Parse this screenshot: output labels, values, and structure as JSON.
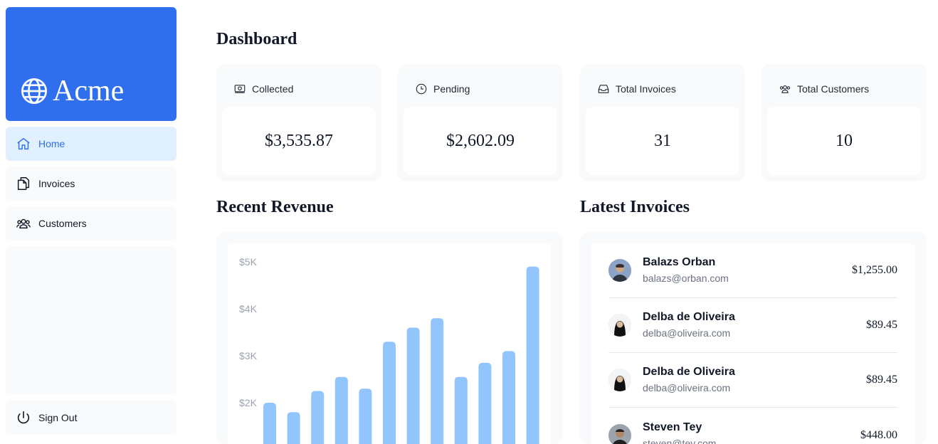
{
  "sidebar": {
    "logo_text": "Acme",
    "nav": [
      {
        "label": "Home",
        "active": true
      },
      {
        "label": "Invoices",
        "active": false
      },
      {
        "label": "Customers",
        "active": false
      }
    ],
    "sign_out": "Sign Out"
  },
  "main": {
    "title": "Dashboard",
    "cards": [
      {
        "label": "Collected",
        "value": "$3,535.87",
        "icon": "banknotes-icon"
      },
      {
        "label": "Pending",
        "value": "$2,602.09",
        "icon": "clock-icon"
      },
      {
        "label": "Total Invoices",
        "value": "31",
        "icon": "inbox-icon"
      },
      {
        "label": "Total Customers",
        "value": "10",
        "icon": "user-group-icon"
      }
    ],
    "revenue_title": "Recent Revenue",
    "invoices_title": "Latest Invoices",
    "latest_invoices": [
      {
        "name": "Balazs Orban",
        "email": "balazs@orban.com",
        "amount": "$1,255.00"
      },
      {
        "name": "Delba de Oliveira",
        "email": "delba@oliveira.com",
        "amount": "$89.45"
      },
      {
        "name": "Delba de Oliveira",
        "email": "delba@oliveira.com",
        "amount": "$89.45"
      },
      {
        "name": "Steven Tey",
        "email": "steven@tey.com",
        "amount": "$448.00"
      }
    ]
  },
  "chart_data": {
    "type": "bar",
    "color": "#93c5fd",
    "y_ticks": [
      "$5K",
      "$4K",
      "$3K",
      "$2K"
    ],
    "ylim": [
      0,
      5000
    ],
    "values": [
      2000,
      1800,
      2250,
      2550,
      2300,
      3300,
      3600,
      3800,
      2550,
      2850,
      3100,
      4900
    ]
  }
}
